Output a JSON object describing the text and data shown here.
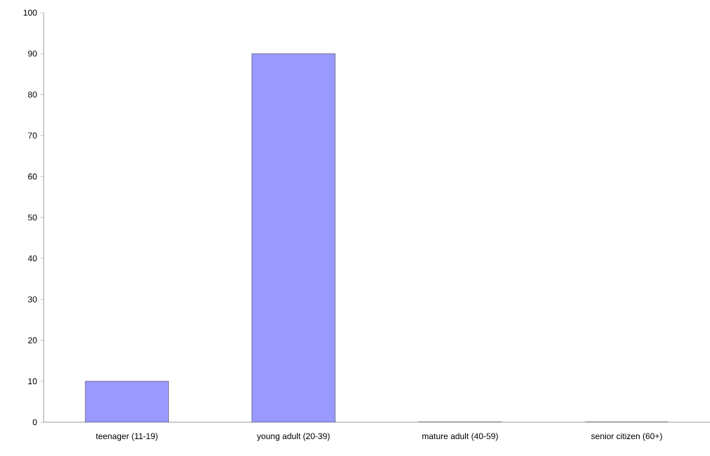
{
  "chart_data": {
    "type": "bar",
    "categories": [
      "teenager (11-19)",
      "young adult (20-39)",
      "mature adult (40-59)",
      "senior citizen (60+)"
    ],
    "values": [
      10,
      90,
      0,
      0
    ],
    "color": "#9999ff",
    "ylim": [
      0,
      100
    ],
    "yticks": [
      0,
      10,
      20,
      30,
      40,
      50,
      60,
      70,
      80,
      90,
      100
    ],
    "grid": false
  }
}
